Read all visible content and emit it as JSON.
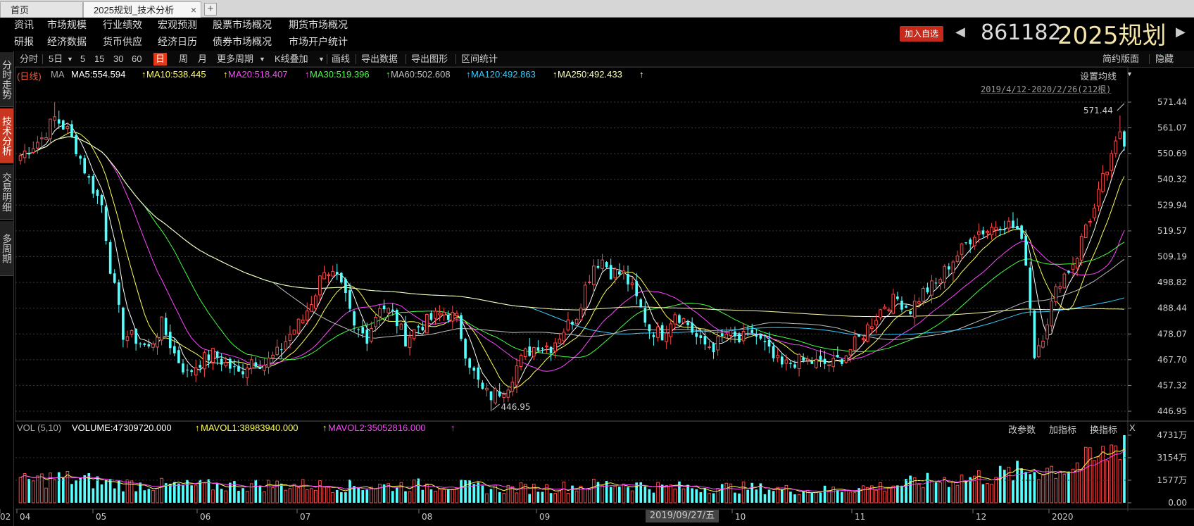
{
  "tabs": [
    {
      "label": "首页"
    },
    {
      "label": "2025规划_技术分析",
      "close": "×"
    }
  ],
  "tab_add": "+",
  "menu_row1": [
    "资讯",
    "市场规模",
    "行业绩效",
    "宏观预测",
    "股票市场概况",
    "期货市场概况"
  ],
  "menu_row2": [
    "研报",
    "经济数据",
    "货币供应",
    "经济日历",
    "债券市场概况",
    "市场开户统计"
  ],
  "add_favorite": "加入自选",
  "stock_code": "861182",
  "stock_name": "2025规划",
  "side_tabs": [
    "分时走势",
    "技术分析",
    "交易明细",
    "多周期"
  ],
  "toolbar": {
    "fenshi": "分时",
    "five_day": "5日",
    "p5": "5",
    "p15": "15",
    "p30": "30",
    "p60": "60",
    "day": "日",
    "week": "周",
    "month": "月",
    "more_period": "更多周期",
    "kline_overlay": "K线叠加",
    "draw_line": "画线",
    "export_data": "导出数据",
    "export_chart": "导出图形",
    "range_stats": "区间统计",
    "simple_layout": "简约版面",
    "hide": "隐藏"
  },
  "ma_legend": {
    "period": "(日线)",
    "ma": "MA",
    "ma5": "MA5:554.594",
    "ma10": "MA10:538.445",
    "ma20": "MA20:518.407",
    "ma30": "MA30:519.396",
    "ma60": "MA60:502.608",
    "ma120": "MA120:492.863",
    "ma250": "MA250:492.433",
    "arrow": "↑"
  },
  "set_ma": "设置均线",
  "range_label": "2019/4/12-2020/2/26(212根)",
  "vol_legend": {
    "name": "VOL (5,10)",
    "volume": "VOLUME:47309720.000",
    "mavol1": "MAVOL1:38983940.000",
    "mavol2": "MAVOL2:35052816.000",
    "arrow": "↑"
  },
  "vol_buttons": {
    "change_params": "改参数",
    "add_indicator": "加指标",
    "switch_indicator": "换指标",
    "close": "X"
  },
  "date_tooltip": "2019/09/27/五",
  "colors": {
    "up": "#ff4a4a",
    "down": "#54ffff",
    "ma5": "#ffffff",
    "ma10": "#ffff55",
    "ma20": "#ff44ff",
    "ma30": "#44ff44",
    "ma60": "#c0c0c0",
    "ma120": "#33ccff",
    "ma250": "#ffffb0"
  },
  "chart_data": {
    "type": "candlestick",
    "price_axis": {
      "min": 446.95,
      "max": 571.44,
      "ticks": [
        "571.44",
        "561.07",
        "550.69",
        "540.32",
        "529.94",
        "519.57",
        "509.19",
        "498.82",
        "488.44",
        "478.07",
        "467.70",
        "457.32",
        "446.95"
      ]
    },
    "volume_axis": {
      "ticks": [
        "4731万",
        "3154万",
        "1577万",
        "0.00"
      ]
    },
    "x_ticks": [
      "04",
      "05",
      "06",
      "07",
      "08",
      "09",
      "10",
      "11",
      "12",
      "2020",
      "02"
    ],
    "max_label": "571.44",
    "min_label": "446.95",
    "anchors": [
      {
        "i": 0,
        "c": 550
      },
      {
        "i": 5,
        "c": 557
      },
      {
        "i": 8,
        "c": 565
      },
      {
        "i": 11,
        "c": 560
      },
      {
        "i": 13,
        "c": 553
      },
      {
        "i": 16,
        "c": 540
      },
      {
        "i": 19,
        "c": 530
      },
      {
        "i": 21,
        "c": 505
      },
      {
        "i": 24,
        "c": 478
      },
      {
        "i": 27,
        "c": 476
      },
      {
        "i": 30,
        "c": 472
      },
      {
        "i": 33,
        "c": 482
      },
      {
        "i": 36,
        "c": 470
      },
      {
        "i": 39,
        "c": 462
      },
      {
        "i": 42,
        "c": 467
      },
      {
        "i": 45,
        "c": 470
      },
      {
        "i": 48,
        "c": 466
      },
      {
        "i": 51,
        "c": 462
      },
      {
        "i": 54,
        "c": 468
      },
      {
        "i": 57,
        "c": 466
      },
      {
        "i": 60,
        "c": 470
      },
      {
        "i": 63,
        "c": 478
      },
      {
        "i": 66,
        "c": 484
      },
      {
        "i": 69,
        "c": 495
      },
      {
        "i": 71,
        "c": 505
      },
      {
        "i": 74,
        "c": 500
      },
      {
        "i": 76,
        "c": 492
      },
      {
        "i": 78,
        "c": 480
      },
      {
        "i": 81,
        "c": 477
      },
      {
        "i": 84,
        "c": 490
      },
      {
        "i": 87,
        "c": 486
      },
      {
        "i": 90,
        "c": 476
      },
      {
        "i": 93,
        "c": 481
      },
      {
        "i": 96,
        "c": 484
      },
      {
        "i": 99,
        "c": 487
      },
      {
        "i": 102,
        "c": 484
      },
      {
        "i": 104,
        "c": 471
      },
      {
        "i": 106,
        "c": 462
      },
      {
        "i": 108,
        "c": 455
      },
      {
        "i": 110,
        "c": 453
      },
      {
        "i": 112,
        "c": 455
      },
      {
        "i": 114,
        "c": 458
      },
      {
        "i": 116,
        "c": 465
      },
      {
        "i": 118,
        "c": 470
      },
      {
        "i": 121,
        "c": 474
      },
      {
        "i": 124,
        "c": 473
      },
      {
        "i": 127,
        "c": 480
      },
      {
        "i": 130,
        "c": 486
      },
      {
        "i": 132,
        "c": 497
      },
      {
        "i": 134,
        "c": 506
      },
      {
        "i": 136,
        "c": 508
      },
      {
        "i": 138,
        "c": 503
      },
      {
        "i": 141,
        "c": 502
      },
      {
        "i": 143,
        "c": 496
      },
      {
        "i": 145,
        "c": 488
      },
      {
        "i": 147,
        "c": 480
      },
      {
        "i": 150,
        "c": 478
      },
      {
        "i": 153,
        "c": 487
      },
      {
        "i": 156,
        "c": 482
      },
      {
        "i": 159,
        "c": 474
      },
      {
        "i": 162,
        "c": 473
      },
      {
        "i": 165,
        "c": 478
      },
      {
        "i": 168,
        "c": 475
      },
      {
        "i": 171,
        "c": 479
      },
      {
        "i": 174,
        "c": 473
      },
      {
        "i": 176,
        "c": 468
      },
      {
        "i": 178,
        "c": 465
      },
      {
        "i": 181,
        "c": 467
      },
      {
        "i": 184,
        "c": 467
      },
      {
        "i": 187,
        "c": 466
      },
      {
        "i": 190,
        "c": 466
      },
      {
        "i": 193,
        "c": 470
      },
      {
        "i": 196,
        "c": 476
      },
      {
        "i": 199,
        "c": 483
      },
      {
        "i": 202,
        "c": 490
      },
      {
        "i": 205,
        "c": 492
      },
      {
        "i": 208,
        "c": 488
      },
      {
        "i": 211,
        "c": 495
      },
      {
        "i": 214,
        "c": 498
      },
      {
        "i": 217,
        "c": 506
      },
      {
        "i": 220,
        "c": 512
      },
      {
        "i": 223,
        "c": 519
      },
      {
        "i": 226,
        "c": 520
      },
      {
        "i": 229,
        "c": 523
      },
      {
        "i": 231,
        "c": 522
      },
      {
        "i": 233,
        "c": 520
      },
      {
        "i": 235,
        "c": 508
      },
      {
        "i": 237,
        "c": 470
      },
      {
        "i": 239,
        "c": 478
      },
      {
        "i": 241,
        "c": 490
      },
      {
        "i": 243,
        "c": 500
      },
      {
        "i": 245,
        "c": 504
      },
      {
        "i": 247,
        "c": 510
      },
      {
        "i": 249,
        "c": 522
      },
      {
        "i": 251,
        "c": 528
      },
      {
        "i": 253,
        "c": 540
      },
      {
        "i": 255,
        "c": 548
      },
      {
        "i": 257,
        "c": 560
      },
      {
        "i": 258,
        "c": 556
      }
    ],
    "volume_anchors": [
      {
        "i": 0,
        "v": 1450
      },
      {
        "i": 8,
        "v": 1750
      },
      {
        "i": 16,
        "v": 1550
      },
      {
        "i": 24,
        "v": 1300
      },
      {
        "i": 40,
        "v": 1180
      },
      {
        "i": 60,
        "v": 1250
      },
      {
        "i": 80,
        "v": 1150
      },
      {
        "i": 100,
        "v": 1280
      },
      {
        "i": 110,
        "v": 980
      },
      {
        "i": 125,
        "v": 1050
      },
      {
        "i": 140,
        "v": 1350
      },
      {
        "i": 150,
        "v": 1100
      },
      {
        "i": 170,
        "v": 1050
      },
      {
        "i": 185,
        "v": 850
      },
      {
        "i": 200,
        "v": 1100
      },
      {
        "i": 215,
        "v": 1600
      },
      {
        "i": 228,
        "v": 1900
      },
      {
        "i": 237,
        "v": 2300
      },
      {
        "i": 245,
        "v": 2500
      },
      {
        "i": 252,
        "v": 3000
      },
      {
        "i": 256,
        "v": 4000
      },
      {
        "i": 258,
        "v": 4731
      }
    ]
  }
}
